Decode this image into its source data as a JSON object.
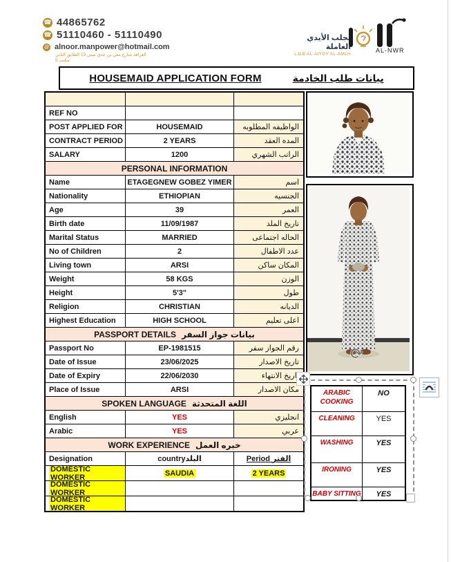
{
  "header": {
    "phone1": "44865762",
    "phone2": "51110460 - 51110490",
    "email": "alnoor.manpower@hotmail.com",
    "address_ar": "الغرافة شارع معن بن عدي مبنى 19 الطابق الثاني مكتب 5",
    "agency_ar": "لجلب الأيدي العاملة",
    "agency_translit": "LJLB AL-AIYDY AL-AMLH",
    "logo_text": "AL-NWR"
  },
  "title": {
    "en": "HOUSEMAID APPLICATION FORM",
    "ar": "بيانات طلب الخادمة"
  },
  "form": {
    "rows": [
      {
        "type": "blank"
      },
      {
        "type": "data",
        "label": "REF NO",
        "value": "",
        "ar": "",
        "right_white": true
      },
      {
        "type": "data",
        "label": "POST APPLIED FOR",
        "value": "HOUSEMAID",
        "ar": "الواظيفه المطلوبه"
      },
      {
        "type": "data",
        "label": "CONTRACT PERIOD",
        "value": "2 YEARS",
        "ar": "المده العقد"
      },
      {
        "type": "data",
        "label": "SALARY",
        "value": "1200",
        "ar": "الراتب الشهري"
      },
      {
        "type": "section",
        "en": "PERSONAL INFORMATION",
        "ar": ""
      },
      {
        "type": "data",
        "label": "Name",
        "value": "ETAGEGNEW GOBEZ YIMER",
        "ar": "اسم"
      },
      {
        "type": "data",
        "label": "Nationality",
        "value": "ETHIOPIAN",
        "ar": "الجنسيه"
      },
      {
        "type": "data",
        "label": "Age",
        "value": "39",
        "ar": "العمر"
      },
      {
        "type": "data",
        "label": "Birth date",
        "value": "11/09/1987",
        "ar": "تاريخ الملد"
      },
      {
        "type": "data",
        "label": "Marital Status",
        "value": "MARRIED",
        "ar": "الحاله اجتماعى"
      },
      {
        "type": "data",
        "label": "No of Children",
        "value": "2",
        "ar": "عدد الاطفال"
      },
      {
        "type": "data",
        "label": "Living town",
        "value": "ARSI",
        "ar": "المكان ساكن"
      },
      {
        "type": "data",
        "label": "Weight",
        "value": "58 KGS",
        "ar": "الوزن"
      },
      {
        "type": "data",
        "label": "Height",
        "value": "5'3\"",
        "ar": "طول"
      },
      {
        "type": "data",
        "label": "Religion",
        "value": "CHRISTIAN",
        "ar": "الديانه"
      },
      {
        "type": "data",
        "label": "Highest Education",
        "value": "HIGH SCHOOL",
        "ar": "اعلى تعليم"
      },
      {
        "type": "section",
        "en": "PASSPORT DETAILS",
        "ar": "بيانات جواز السفر"
      },
      {
        "type": "data",
        "label": "Passport No",
        "value": "EP-1981515",
        "ar": "رقم الجواز سفر"
      },
      {
        "type": "data",
        "label": "Date of Issue",
        "value": "23/06/2025",
        "ar": "تاريخ الاصدار"
      },
      {
        "type": "data",
        "label": "Date of Expiry",
        "value": "22/06/2030",
        "ar": "تاريخ الانتهاء"
      },
      {
        "type": "data",
        "label": "Place of Issue",
        "value": "ARSI",
        "ar": "مكان الاصدار"
      },
      {
        "type": "section",
        "en": "SPOKEN LANGUAGE",
        "ar": "اللغة المتحدثة"
      },
      {
        "type": "data",
        "label": "English",
        "value": "YES",
        "ar": "انجليزي",
        "value_red": true
      },
      {
        "type": "data",
        "label": "Arabic",
        "value": "YES",
        "ar": "عربي",
        "value_red": true
      },
      {
        "type": "section",
        "en": "WORK EXPERIENCE",
        "ar": "خبره العمل"
      },
      {
        "type": "data",
        "label": "Designation",
        "value": "countryالبلد",
        "ar": "Period الفتر",
        "right_white": true,
        "right_center": true,
        "underline_right": true
      },
      {
        "type": "data",
        "label": "DOMESTIC WORKER",
        "value": "SAUDIA",
        "ar": "2 YEARS",
        "highlight": true,
        "right_white": true,
        "right_center": true,
        "tall": true
      },
      {
        "type": "data",
        "label": "DOMESTIC WORKER",
        "value": "",
        "ar": "",
        "highlight": true,
        "right_white": true,
        "tall": true
      },
      {
        "type": "data",
        "label": "DOMESTIC WORKER",
        "value": "",
        "ar": "",
        "highlight": true,
        "right_white": true,
        "tall": true
      }
    ]
  },
  "skills": {
    "rows": [
      {
        "key": "arabic-cooking",
        "label": "ARABIC COOKING",
        "value": "NO"
      },
      {
        "key": "cleaning",
        "label": "CLEANING",
        "value": "YES"
      },
      {
        "key": "washing",
        "label": "WASHING",
        "value": "YES"
      },
      {
        "key": "ironing",
        "label": "IRONING",
        "value": "YES"
      },
      {
        "key": "baby-sitting",
        "label": "BABY SITTING",
        "value": "YES"
      }
    ]
  },
  "icons": {
    "phone": "☎",
    "email": "@",
    "rotate": "⟳"
  },
  "colors": {
    "cream": "#fdf3d8",
    "section_peach": "#fbe5d6",
    "highlight_yellow": "#ffff00",
    "value_red": "#e00000",
    "brand_gold": "#b58b2a"
  }
}
